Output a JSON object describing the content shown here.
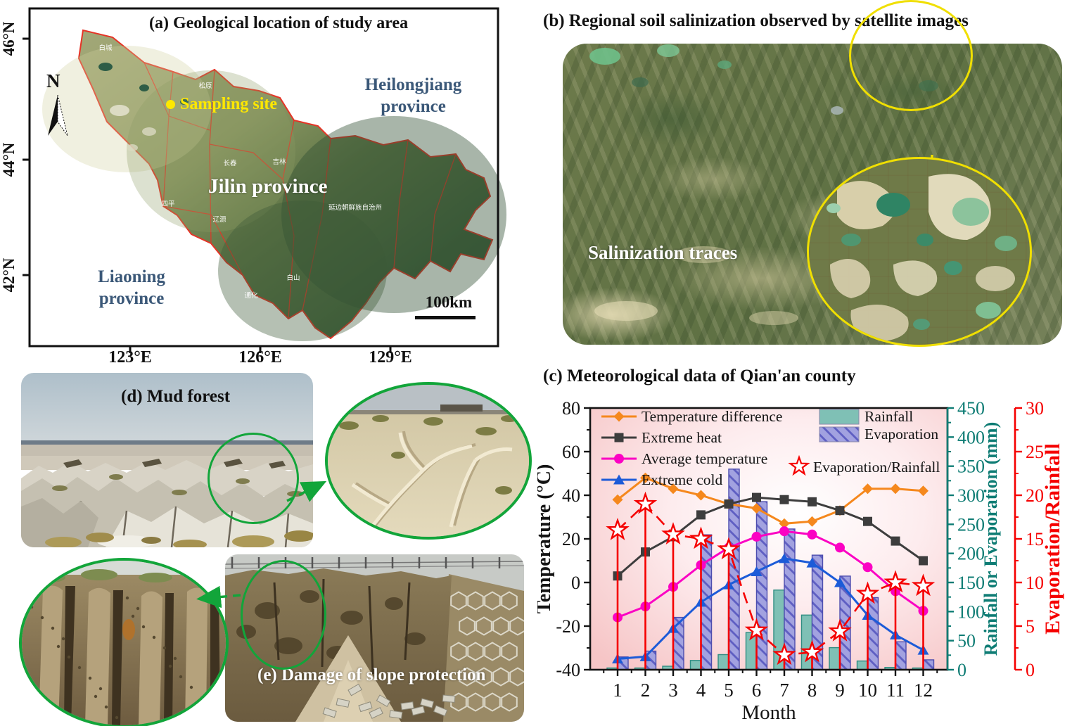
{
  "panel_a": {
    "title": "(a) Geological location of study area",
    "north_label": "N",
    "sampling_site_label": "Sampling site",
    "province_labels": {
      "heilongjiang": "Heilongjiang province",
      "jilin": "Jilin province",
      "liaoning": "Liaoning province"
    },
    "scale_label": "100km",
    "lat_ticks": [
      "46°N",
      "44°N",
      "42°N"
    ],
    "lon_ticks": [
      "123°E",
      "126°E",
      "129°E"
    ],
    "city_labels": [
      "白城",
      "松原",
      "长春",
      "吉林",
      "四平",
      "辽源",
      "白山",
      "通化",
      "延边朝鲜族自治州"
    ]
  },
  "panel_b": {
    "title": "(b) Regional soil salinization observed by satellite images",
    "annotation": "Salinization traces"
  },
  "panel_c": {
    "title": "(c) Meteorological data of Qian'an county"
  },
  "panel_d": {
    "title": "(d) Mud forest"
  },
  "panel_e": {
    "title": "(e) Damage of slope protection"
  },
  "chart_data": {
    "type": "combo",
    "x": [
      1,
      2,
      3,
      4,
      5,
      6,
      7,
      8,
      9,
      10,
      11,
      12
    ],
    "xlabel": "Month",
    "ylabel_left": "Temperature (°C)",
    "ylabel_right1": "Rainfall or Evaporation (mm)",
    "ylabel_right2": "Evaporation/Rainfall",
    "ylim_left": [
      -40,
      80
    ],
    "ylim_right1": [
      0,
      450
    ],
    "ylim_right2": [
      0,
      30
    ],
    "background": {
      "edge": "#f6c5c6",
      "center": "#ffffff"
    },
    "axis_colors": {
      "left": "#141414",
      "right1": "#0e7c74",
      "right2": "#f50000"
    },
    "series": [
      {
        "name": "Temperature difference",
        "type": "line",
        "marker": "diamond",
        "color": "#f5881d",
        "axis": "left",
        "values": [
          38,
          48,
          43,
          40,
          36,
          34,
          27,
          28,
          33,
          43,
          43,
          42
        ]
      },
      {
        "name": "Extreme heat",
        "type": "line",
        "marker": "square",
        "color": "#3d3d3d",
        "axis": "left",
        "values": [
          3,
          14,
          21,
          31,
          36,
          39,
          38,
          37,
          33,
          28,
          19,
          10
        ]
      },
      {
        "name": "Average temperature",
        "type": "line",
        "marker": "circle",
        "color": "#fb02c3",
        "axis": "left",
        "values": [
          -16,
          -11,
          -2,
          8,
          16,
          21,
          23.5,
          22,
          16,
          7,
          -4,
          -13
        ]
      },
      {
        "name": "Extreme cold",
        "type": "line",
        "marker": "triangle",
        "color": "#1c5bd8",
        "axis": "left",
        "values": [
          -35,
          -34,
          -21,
          -9,
          -1,
          5,
          11,
          9,
          0,
          -15,
          -24,
          -31
        ]
      },
      {
        "name": "Rainfall",
        "type": "bar",
        "hatch": false,
        "color": "#7fc0b5",
        "axis": "right1",
        "values": [
          3,
          3,
          6,
          16,
          26,
          64,
          137,
          94,
          38,
          15,
          4,
          3
        ]
      },
      {
        "name": "Evaporation",
        "type": "bar",
        "hatch": true,
        "color": "#a2a2e0",
        "axis": "right1",
        "values": [
          22,
          32,
          90,
          232,
          345,
          289,
          242,
          197,
          161,
          124,
          48,
          17
        ]
      },
      {
        "name": "Evaporation/Rainfall",
        "type": "star-stem",
        "color": "#f50000",
        "axis": "right2",
        "values": [
          16,
          19,
          15.5,
          15,
          13.8,
          4.5,
          1.7,
          2,
          4.4,
          8.7,
          10,
          9.6
        ]
      }
    ]
  }
}
